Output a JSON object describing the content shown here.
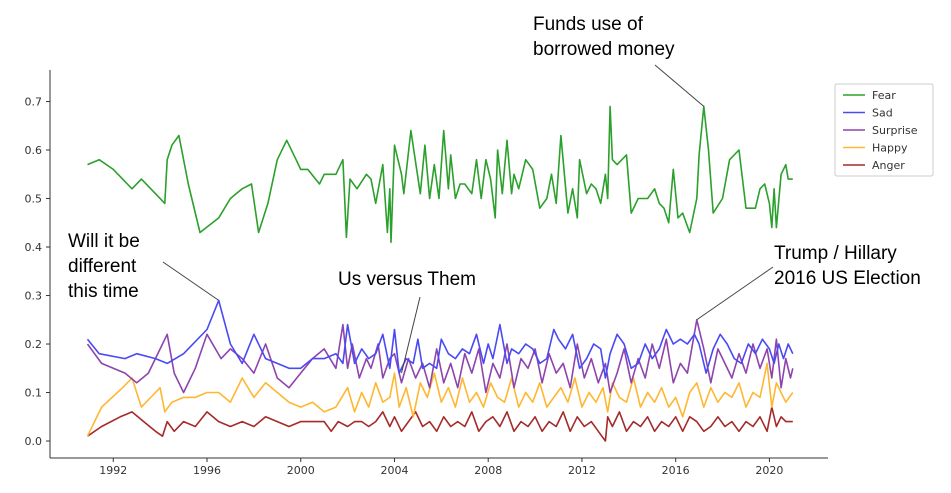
{
  "chart_data": {
    "type": "line",
    "title": "",
    "xlabel": "",
    "ylabel": "",
    "xlim": [
      1989.3,
      2022.5
    ],
    "ylim": [
      -0.035,
      0.765
    ],
    "grid": false,
    "legend_position": "top-right",
    "xticks": [
      1992,
      1996,
      2000,
      2004,
      2008,
      2012,
      2016,
      2020
    ],
    "xtick_labels": [
      "1992",
      "1996",
      "2000",
      "2004",
      "2008",
      "2012",
      "2016",
      "2020"
    ],
    "yticks": [
      0.0,
      0.1,
      0.2,
      0.3,
      0.4,
      0.5,
      0.6,
      0.7
    ],
    "ytick_labels": [
      "0.0",
      "0.1",
      "0.2",
      "0.3",
      "0.4",
      "0.5",
      "0.6",
      "0.7"
    ],
    "annotations": [
      {
        "lines": [
          "Funds use of",
          "borrowed money"
        ],
        "x": 2017.2,
        "y": 0.69
      },
      {
        "lines": [
          "Will it be",
          "different",
          "this time"
        ],
        "x": 1996.5,
        "y": 0.29
      },
      {
        "lines": [
          "Us versus Them"
        ],
        "x": 2004.3,
        "y": 0.14
      },
      {
        "lines": [
          "Trump / Hillary",
          "2016 US Election"
        ],
        "x": 2016.9,
        "y": 0.25
      }
    ],
    "series": [
      {
        "name": "Fear",
        "color": "#2ca02c",
        "x": [
          1990.9,
          1991.4,
          1992.0,
          1992.8,
          1993.2,
          1993.8,
          1994.2,
          1994.3,
          1994.5,
          1994.8,
          1995.2,
          1995.7,
          1996.5,
          1997.0,
          1997.5,
          1997.9,
          1998.2,
          1998.6,
          1999.0,
          1999.4,
          1999.8,
          2000.0,
          2000.3,
          2000.8,
          2001.0,
          2001.5,
          2001.8,
          2001.95,
          2002.1,
          2002.4,
          2002.8,
          2003.0,
          2003.2,
          2003.5,
          2003.7,
          2003.8,
          2003.85,
          2004.0,
          2004.3,
          2004.4,
          2004.7,
          2005.1,
          2005.3,
          2005.5,
          2005.7,
          2005.9,
          2006.1,
          2006.3,
          2006.4,
          2006.6,
          2006.8,
          2007.0,
          2007.3,
          2007.5,
          2007.7,
          2007.9,
          2008.1,
          2008.3,
          2008.4,
          2008.6,
          2008.8,
          2009.0,
          2009.1,
          2009.3,
          2009.6,
          2009.9,
          2010.2,
          2010.5,
          2010.7,
          2010.9,
          2011.1,
          2011.4,
          2011.6,
          2011.8,
          2011.9,
          2012.2,
          2012.4,
          2012.6,
          2012.8,
          2013.0,
          2013.1,
          2013.2,
          2013.3,
          2013.5,
          2013.9,
          2014.1,
          2014.4,
          2014.8,
          2015.1,
          2015.3,
          2015.5,
          2015.7,
          2015.9,
          2016.1,
          2016.3,
          2016.6,
          2016.9,
          2017.0,
          2017.2,
          2017.4,
          2017.6,
          2018.0,
          2018.3,
          2018.7,
          2019.0,
          2019.4,
          2019.6,
          2019.8,
          2020.0,
          2020.1,
          2020.2,
          2020.3,
          2020.5,
          2020.7,
          2020.8,
          2021.0
        ],
        "y": [
          0.57,
          0.58,
          0.56,
          0.52,
          0.54,
          0.51,
          0.49,
          0.58,
          0.61,
          0.63,
          0.53,
          0.43,
          0.46,
          0.5,
          0.52,
          0.53,
          0.43,
          0.49,
          0.58,
          0.62,
          0.58,
          0.56,
          0.56,
          0.53,
          0.55,
          0.55,
          0.58,
          0.42,
          0.54,
          0.52,
          0.55,
          0.54,
          0.49,
          0.57,
          0.43,
          0.52,
          0.41,
          0.61,
          0.55,
          0.51,
          0.64,
          0.51,
          0.61,
          0.5,
          0.57,
          0.5,
          0.64,
          0.52,
          0.59,
          0.5,
          0.53,
          0.53,
          0.51,
          0.58,
          0.5,
          0.58,
          0.54,
          0.46,
          0.6,
          0.51,
          0.62,
          0.51,
          0.55,
          0.52,
          0.58,
          0.56,
          0.48,
          0.5,
          0.55,
          0.49,
          0.63,
          0.47,
          0.52,
          0.46,
          0.58,
          0.51,
          0.53,
          0.52,
          0.49,
          0.55,
          0.5,
          0.69,
          0.58,
          0.57,
          0.59,
          0.47,
          0.5,
          0.5,
          0.52,
          0.49,
          0.48,
          0.45,
          0.56,
          0.46,
          0.47,
          0.43,
          0.5,
          0.59,
          0.69,
          0.6,
          0.47,
          0.5,
          0.58,
          0.6,
          0.48,
          0.48,
          0.52,
          0.53,
          0.49,
          0.44,
          0.52,
          0.44,
          0.55,
          0.57,
          0.54,
          0.54
        ]
      },
      {
        "name": "Sad",
        "color": "#4a4af4",
        "x": [
          1990.9,
          1991.4,
          1992.5,
          1993.0,
          1993.8,
          1994.3,
          1995.0,
          1996.0,
          1996.5,
          1997.0,
          1997.5,
          1998.0,
          1998.5,
          1999.0,
          1999.5,
          2000.0,
          2000.5,
          2001.0,
          2001.5,
          2001.8,
          2002.0,
          2002.3,
          2002.6,
          2002.9,
          2003.2,
          2003.5,
          2003.8,
          2004.0,
          2004.2,
          2004.5,
          2004.8,
          2005.0,
          2005.2,
          2005.5,
          2005.8,
          2006.0,
          2006.3,
          2006.6,
          2006.9,
          2007.2,
          2007.5,
          2007.8,
          2008.0,
          2008.2,
          2008.5,
          2008.8,
          2009.0,
          2009.3,
          2009.6,
          2009.9,
          2010.2,
          2010.5,
          2010.8,
          2011.0,
          2011.3,
          2011.6,
          2011.9,
          2012.2,
          2012.5,
          2012.8,
          2013.0,
          2013.2,
          2013.5,
          2013.8,
          2014.1,
          2014.4,
          2014.7,
          2015.0,
          2015.3,
          2015.6,
          2015.9,
          2016.2,
          2016.5,
          2016.8,
          2017.0,
          2017.3,
          2017.6,
          2017.9,
          2018.2,
          2018.5,
          2018.8,
          2019.1,
          2019.4,
          2019.7,
          2020.0,
          2020.2,
          2020.4,
          2020.6,
          2020.8,
          2021.0
        ],
        "y": [
          0.21,
          0.18,
          0.17,
          0.18,
          0.17,
          0.16,
          0.18,
          0.23,
          0.29,
          0.2,
          0.16,
          0.22,
          0.17,
          0.16,
          0.15,
          0.15,
          0.17,
          0.17,
          0.18,
          0.16,
          0.24,
          0.16,
          0.19,
          0.17,
          0.18,
          0.22,
          0.15,
          0.23,
          0.14,
          0.17,
          0.16,
          0.21,
          0.15,
          0.16,
          0.15,
          0.21,
          0.18,
          0.17,
          0.19,
          0.18,
          0.22,
          0.16,
          0.2,
          0.17,
          0.24,
          0.16,
          0.19,
          0.18,
          0.2,
          0.19,
          0.16,
          0.17,
          0.23,
          0.21,
          0.19,
          0.22,
          0.15,
          0.17,
          0.2,
          0.19,
          0.13,
          0.18,
          0.22,
          0.2,
          0.15,
          0.16,
          0.2,
          0.17,
          0.19,
          0.23,
          0.2,
          0.21,
          0.2,
          0.22,
          0.2,
          0.14,
          0.19,
          0.22,
          0.2,
          0.17,
          0.16,
          0.2,
          0.18,
          0.21,
          0.19,
          0.16,
          0.2,
          0.17,
          0.2,
          0.18
        ]
      },
      {
        "name": "Surprise",
        "color": "#8e44ad",
        "x": [
          1990.9,
          1991.5,
          1992.5,
          1993.0,
          1993.5,
          1994.3,
          1994.6,
          1995.0,
          1995.5,
          1996.0,
          1996.6,
          1997.0,
          1997.5,
          1998.0,
          1998.5,
          1999.0,
          1999.5,
          2000.0,
          2000.5,
          2001.0,
          2001.5,
          2001.8,
          2002.0,
          2002.2,
          2002.5,
          2002.8,
          2003.0,
          2003.3,
          2003.5,
          2003.8,
          2004.0,
          2004.3,
          2004.6,
          2004.9,
          2005.2,
          2005.5,
          2005.8,
          2006.1,
          2006.4,
          2006.7,
          2007.0,
          2007.3,
          2007.6,
          2007.9,
          2008.2,
          2008.5,
          2008.8,
          2009.1,
          2009.4,
          2009.7,
          2010.0,
          2010.3,
          2010.6,
          2010.9,
          2011.2,
          2011.5,
          2011.8,
          2012.1,
          2012.4,
          2012.7,
          2013.0,
          2013.2,
          2013.5,
          2013.8,
          2014.1,
          2014.4,
          2014.7,
          2015.0,
          2015.3,
          2015.6,
          2015.9,
          2016.2,
          2016.5,
          2016.9,
          2017.2,
          2017.5,
          2017.8,
          2018.1,
          2018.4,
          2018.7,
          2019.0,
          2019.3,
          2019.6,
          2019.9,
          2020.1,
          2020.3,
          2020.5,
          2020.7,
          2020.9,
          2021.0
        ],
        "y": [
          0.2,
          0.16,
          0.14,
          0.12,
          0.14,
          0.22,
          0.14,
          0.1,
          0.15,
          0.22,
          0.17,
          0.19,
          0.17,
          0.14,
          0.2,
          0.13,
          0.11,
          0.14,
          0.17,
          0.19,
          0.15,
          0.24,
          0.15,
          0.2,
          0.13,
          0.17,
          0.15,
          0.2,
          0.13,
          0.17,
          0.18,
          0.12,
          0.17,
          0.13,
          0.16,
          0.11,
          0.19,
          0.12,
          0.16,
          0.11,
          0.18,
          0.14,
          0.19,
          0.1,
          0.16,
          0.13,
          0.2,
          0.11,
          0.17,
          0.15,
          0.19,
          0.12,
          0.18,
          0.14,
          0.16,
          0.11,
          0.2,
          0.13,
          0.17,
          0.12,
          0.16,
          0.1,
          0.14,
          0.19,
          0.12,
          0.17,
          0.13,
          0.2,
          0.15,
          0.21,
          0.12,
          0.16,
          0.14,
          0.25,
          0.19,
          0.12,
          0.19,
          0.16,
          0.13,
          0.18,
          0.14,
          0.2,
          0.15,
          0.19,
          0.13,
          0.21,
          0.11,
          0.17,
          0.13,
          0.15
        ]
      },
      {
        "name": "Happy",
        "color": "#ffb732",
        "x": [
          1990.9,
          1991.5,
          1992.4,
          1992.8,
          1993.2,
          1993.8,
          1994.0,
          1994.2,
          1994.5,
          1995.0,
          1995.5,
          1996.0,
          1996.5,
          1997.0,
          1997.5,
          1998.0,
          1998.5,
          1999.0,
          1999.5,
          2000.0,
          2000.5,
          2001.0,
          2001.5,
          2002.0,
          2002.3,
          2002.6,
          2002.9,
          2003.2,
          2003.5,
          2003.8,
          2004.0,
          2004.2,
          2004.5,
          2004.8,
          2005.1,
          2005.4,
          2005.7,
          2006.0,
          2006.3,
          2006.6,
          2006.9,
          2007.2,
          2007.5,
          2007.8,
          2008.1,
          2008.4,
          2008.7,
          2009.0,
          2009.3,
          2009.6,
          2009.9,
          2010.2,
          2010.5,
          2010.8,
          2011.1,
          2011.4,
          2011.7,
          2012.0,
          2012.3,
          2012.6,
          2012.9,
          2013.1,
          2013.3,
          2013.6,
          2013.9,
          2014.2,
          2014.5,
          2014.8,
          2015.1,
          2015.4,
          2015.7,
          2016.0,
          2016.3,
          2016.6,
          2016.9,
          2017.2,
          2017.5,
          2017.8,
          2018.1,
          2018.4,
          2018.7,
          2019.0,
          2019.3,
          2019.6,
          2019.9,
          2020.1,
          2020.3,
          2020.5,
          2020.7,
          2021.0
        ],
        "y": [
          0.01,
          0.07,
          0.11,
          0.13,
          0.07,
          0.1,
          0.11,
          0.06,
          0.08,
          0.09,
          0.09,
          0.1,
          0.1,
          0.08,
          0.13,
          0.09,
          0.12,
          0.1,
          0.08,
          0.07,
          0.08,
          0.06,
          0.07,
          0.11,
          0.06,
          0.1,
          0.07,
          0.12,
          0.08,
          0.09,
          0.14,
          0.07,
          0.11,
          0.05,
          0.12,
          0.09,
          0.14,
          0.08,
          0.11,
          0.07,
          0.13,
          0.08,
          0.1,
          0.07,
          0.12,
          0.09,
          0.08,
          0.13,
          0.07,
          0.1,
          0.08,
          0.12,
          0.07,
          0.09,
          0.11,
          0.08,
          0.13,
          0.07,
          0.1,
          0.08,
          0.11,
          0.06,
          0.12,
          0.09,
          0.08,
          0.13,
          0.07,
          0.1,
          0.08,
          0.11,
          0.07,
          0.09,
          0.05,
          0.1,
          0.12,
          0.07,
          0.11,
          0.08,
          0.1,
          0.09,
          0.12,
          0.07,
          0.1,
          0.09,
          0.16,
          0.07,
          0.12,
          0.1,
          0.08,
          0.1
        ]
      },
      {
        "name": "Anger",
        "color": "#a52a2a",
        "x": [
          1990.9,
          1991.5,
          1992.3,
          1992.8,
          1993.3,
          1993.8,
          1994.1,
          1994.3,
          1994.6,
          1995.0,
          1995.5,
          1996.0,
          1996.5,
          1997.0,
          1997.5,
          1998.0,
          1998.5,
          1999.0,
          1999.5,
          2000.0,
          2000.5,
          2001.0,
          2001.3,
          2001.6,
          2002.0,
          2002.3,
          2002.6,
          2002.9,
          2003.2,
          2003.5,
          2003.8,
          2004.0,
          2004.3,
          2004.6,
          2004.9,
          2005.2,
          2005.5,
          2005.8,
          2006.1,
          2006.4,
          2006.7,
          2007.0,
          2007.3,
          2007.6,
          2007.9,
          2008.2,
          2008.5,
          2008.8,
          2009.1,
          2009.4,
          2009.7,
          2010.0,
          2010.3,
          2010.6,
          2010.9,
          2011.2,
          2011.5,
          2011.8,
          2012.1,
          2012.4,
          2012.7,
          2013.0,
          2013.1,
          2013.3,
          2013.6,
          2013.9,
          2014.2,
          2014.5,
          2014.8,
          2015.1,
          2015.4,
          2015.7,
          2016.0,
          2016.3,
          2016.6,
          2016.9,
          2017.2,
          2017.5,
          2017.8,
          2018.1,
          2018.4,
          2018.7,
          2019.0,
          2019.3,
          2019.6,
          2019.9,
          2020.1,
          2020.3,
          2020.5,
          2020.7,
          2021.0
        ],
        "y": [
          0.01,
          0.03,
          0.05,
          0.06,
          0.04,
          0.02,
          0.01,
          0.04,
          0.02,
          0.04,
          0.03,
          0.06,
          0.04,
          0.03,
          0.04,
          0.03,
          0.05,
          0.04,
          0.03,
          0.04,
          0.04,
          0.04,
          0.02,
          0.04,
          0.03,
          0.04,
          0.04,
          0.03,
          0.04,
          0.06,
          0.03,
          0.05,
          0.02,
          0.04,
          0.06,
          0.03,
          0.04,
          0.02,
          0.05,
          0.03,
          0.04,
          0.03,
          0.06,
          0.02,
          0.04,
          0.05,
          0.03,
          0.06,
          0.02,
          0.04,
          0.03,
          0.05,
          0.02,
          0.04,
          0.03,
          0.06,
          0.02,
          0.05,
          0.03,
          0.04,
          0.02,
          0.0,
          0.05,
          0.03,
          0.06,
          0.02,
          0.04,
          0.03,
          0.05,
          0.02,
          0.04,
          0.03,
          0.05,
          0.02,
          0.05,
          0.04,
          0.02,
          0.03,
          0.05,
          0.03,
          0.04,
          0.02,
          0.04,
          0.03,
          0.05,
          0.02,
          0.07,
          0.03,
          0.05,
          0.04,
          0.04
        ]
      }
    ]
  }
}
